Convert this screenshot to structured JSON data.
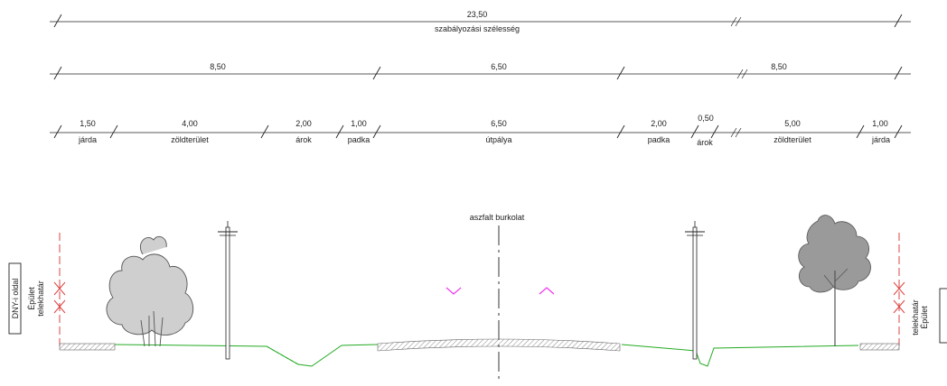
{
  "dimensions": {
    "total": {
      "value": "23,50",
      "label": "szabályozási szélesség"
    },
    "groups": [
      "8,50",
      "6,50",
      "8,50"
    ],
    "segments": [
      {
        "value": "1,50",
        "label": "járda"
      },
      {
        "value": "4,00",
        "label": "zöldterület"
      },
      {
        "value": "2,00",
        "label": "árok"
      },
      {
        "value": "1,00",
        "label": "padka"
      },
      {
        "value": "6,50",
        "label": "útpálya"
      },
      {
        "value": "2,00",
        "label": "padka"
      },
      {
        "value": "0,50",
        "label": "árok"
      },
      {
        "value": "5,00",
        "label": "zöldterület"
      },
      {
        "value": "1,00",
        "label": "járda"
      }
    ]
  },
  "section": {
    "road_surface_label": "aszfalt burkolat",
    "left_side": {
      "side_label": "DNY-i oldal",
      "line1": "Épület",
      "line2": "telekhatár"
    },
    "right_side": {
      "line1": "telekhatár",
      "line2": "Épület"
    }
  },
  "colors": {
    "line": "#222222",
    "ground": "#22aa22",
    "property_line": "#dd4444",
    "arrow": "#ee33ee",
    "hatch": "#888888"
  }
}
